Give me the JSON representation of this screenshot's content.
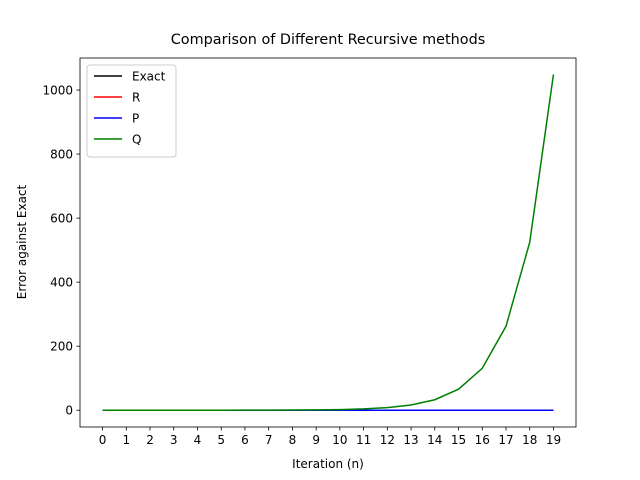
{
  "chart_data": {
    "type": "line",
    "title": "Comparison of Different Recursive methods",
    "xlabel": "Iteration (n)",
    "ylabel": "Error against Exact",
    "x": [
      0,
      1,
      2,
      3,
      4,
      5,
      6,
      7,
      8,
      9,
      10,
      11,
      12,
      13,
      14,
      15,
      16,
      17,
      18,
      19
    ],
    "series": [
      {
        "name": "Exact",
        "color": "#000000",
        "values": [
          0,
          0,
          0,
          0,
          0,
          0,
          0,
          0,
          0,
          0,
          0,
          0,
          0,
          0,
          0,
          0,
          0,
          0,
          0,
          0
        ]
      },
      {
        "name": "R",
        "color": "#ff0000",
        "values": [
          0,
          0,
          0,
          0,
          0,
          0,
          0,
          0,
          0,
          0,
          0,
          0,
          0,
          0,
          0,
          0,
          0,
          0,
          0,
          0
        ]
      },
      {
        "name": "P",
        "color": "#0000ff",
        "values": [
          0,
          0,
          0,
          0,
          0,
          0,
          0,
          0,
          0,
          0,
          0,
          0,
          0,
          0,
          0,
          0,
          0,
          0,
          0,
          0
        ]
      },
      {
        "name": "Q",
        "color": "#008000",
        "values": [
          0.002,
          0.004,
          0.008,
          0.016,
          0.032,
          0.064,
          0.128,
          0.256,
          0.512,
          1.024,
          2.048,
          4.096,
          8.192,
          16.384,
          32.768,
          65.536,
          131.072,
          262.144,
          524.288,
          1048.576
        ]
      }
    ],
    "xlim": [
      -0.95,
      19.95
    ],
    "ylim": [
      -52.4,
      1100
    ],
    "xticks": [
      0,
      1,
      2,
      3,
      4,
      5,
      6,
      7,
      8,
      9,
      10,
      11,
      12,
      13,
      14,
      15,
      16,
      17,
      18,
      19
    ],
    "yticks": [
      0,
      200,
      400,
      600,
      800,
      1000
    ],
    "legend": "upper left",
    "grid": false
  }
}
